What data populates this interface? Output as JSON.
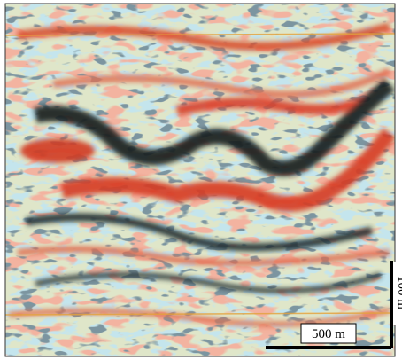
{
  "scale_bars": {
    "horizontal": {
      "label": "500 m"
    },
    "vertical": {
      "label": "100 m"
    }
  }
}
